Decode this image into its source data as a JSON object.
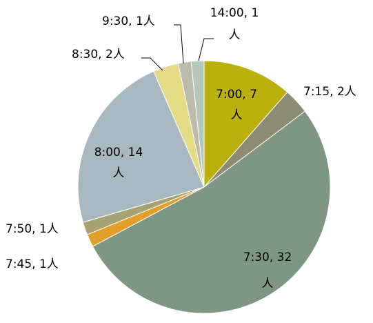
{
  "chart_data": {
    "type": "pie",
    "title": "",
    "start_angle_deg": 0,
    "direction": "clockwise",
    "slices": [
      {
        "category": "7:00",
        "value": 7,
        "unit": "人",
        "color": "#BAB00E",
        "label_lines": [
          "7:00, 7",
          "人"
        ]
      },
      {
        "category": "7:15",
        "value": 2,
        "unit": "人",
        "color": "#8C8B74",
        "label_lines": [
          "7:15, 2人"
        ]
      },
      {
        "category": "7:30",
        "value": 32,
        "unit": "人",
        "color": "#7D9783",
        "label_lines": [
          "7:30, 32",
          "人"
        ]
      },
      {
        "category": "7:45",
        "value": 1,
        "unit": "人",
        "color": "#E19F29",
        "label_lines": [
          "7:45, 1人"
        ]
      },
      {
        "category": "7:50",
        "value": 1,
        "unit": "人",
        "color": "#A7A272",
        "label_lines": [
          "7:50, 1人"
        ]
      },
      {
        "category": "8:00",
        "value": 14,
        "unit": "人",
        "color": "#A8B8C0",
        "label_lines": [
          "8:00, 14",
          "人"
        ]
      },
      {
        "category": "8:30",
        "value": 2,
        "unit": "人",
        "color": "#E4DB87",
        "label_lines": [
          "8:30, 2人"
        ]
      },
      {
        "category": "9:30",
        "value": 1,
        "unit": "人",
        "color": "#BCBCAC",
        "label_lines": [
          "9:30, 1人"
        ]
      },
      {
        "category": "14:00",
        "value": 1,
        "unit": "人",
        "color": "#B5C7BA",
        "label_lines": [
          "14:00, 1",
          "人"
        ]
      }
    ]
  }
}
